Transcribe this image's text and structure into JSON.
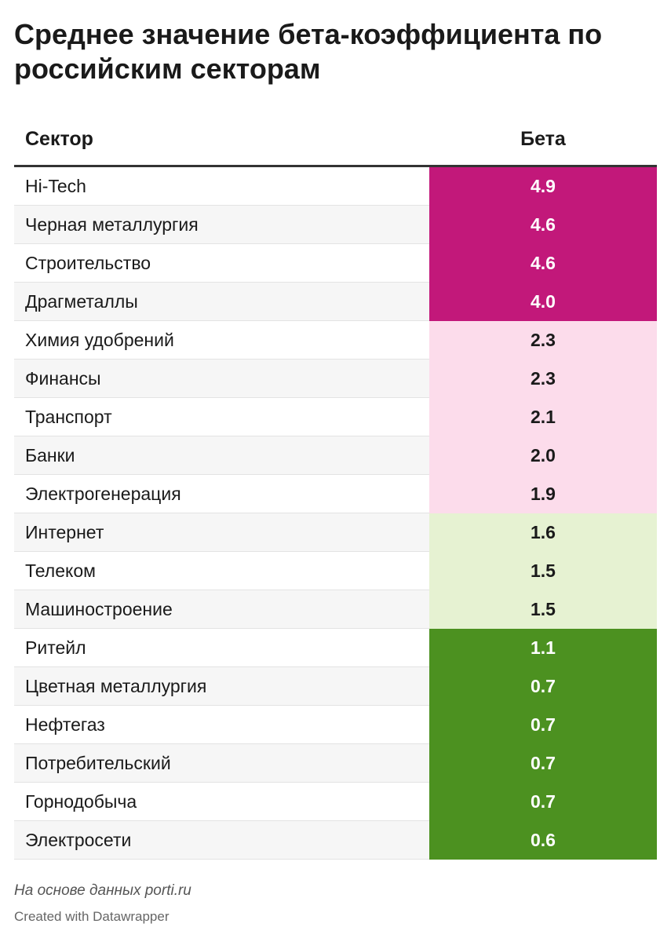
{
  "title": "Среднее значение бета-коэффициента по российским секторам",
  "notes": "На основе данных porti.ru",
  "credit": "Created with Datawrapper",
  "colors": {
    "very_high": "#c2187a",
    "high": "#fcdceb",
    "medium": "#e6f2d2",
    "low": "#4c9120",
    "text_dark": "#1a1a1a",
    "text_light": "#ffffff"
  },
  "chart_data": {
    "type": "table",
    "columns": [
      "Сектор",
      "Бета"
    ],
    "rows": [
      {
        "sector": "Hi-Tech",
        "beta": "4.9",
        "value": 4.9
      },
      {
        "sector": "Черная металлургия",
        "beta": "4.6",
        "value": 4.6
      },
      {
        "sector": "Строительство",
        "beta": "4.6",
        "value": 4.6
      },
      {
        "sector": "Драгметаллы",
        "beta": "4.0",
        "value": 4.0
      },
      {
        "sector": "Химия удобрений",
        "beta": "2.3",
        "value": 2.3
      },
      {
        "sector": "Финансы",
        "beta": "2.3",
        "value": 2.3
      },
      {
        "sector": "Транспорт",
        "beta": "2.1",
        "value": 2.1
      },
      {
        "sector": "Банки",
        "beta": "2.0",
        "value": 2.0
      },
      {
        "sector": "Электрогенерация",
        "beta": "1.9",
        "value": 1.9
      },
      {
        "sector": "Интернет",
        "beta": "1.6",
        "value": 1.6
      },
      {
        "sector": "Телеком",
        "beta": "1.5",
        "value": 1.5
      },
      {
        "sector": "Машиностроение",
        "beta": "1.5",
        "value": 1.5
      },
      {
        "sector": "Ритейл",
        "beta": "1.1",
        "value": 1.1
      },
      {
        "sector": "Цветная металлургия",
        "beta": "0.7",
        "value": 0.7
      },
      {
        "sector": "Нефтегаз",
        "beta": "0.7",
        "value": 0.7
      },
      {
        "sector": "Потребительский",
        "beta": "0.7",
        "value": 0.7
      },
      {
        "sector": "Горнодобыча",
        "beta": "0.7",
        "value": 0.7
      },
      {
        "sector": "Электросети",
        "beta": "0.6",
        "value": 0.6
      }
    ]
  }
}
